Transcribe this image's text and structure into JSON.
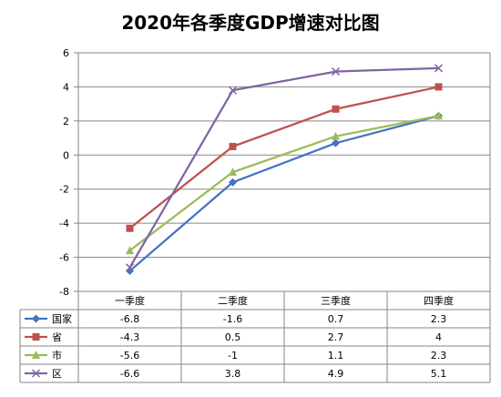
{
  "chart_data": {
    "type": "line",
    "title": "2020年各季度GDP增速对比图",
    "xlabel": "",
    "ylabel": "",
    "categories": [
      "一季度",
      "二季度",
      "三季度",
      "四季度"
    ],
    "ylim": [
      -8,
      6
    ],
    "ytick_step": 2,
    "grid": "horizontal",
    "legend": "data-table-left",
    "series": [
      {
        "name": "国家",
        "marker": "diamond",
        "color": "#4472C4",
        "values": [
          -6.8,
          -1.6,
          0.7,
          2.3
        ],
        "labels": [
          "-6.8",
          "-1.6",
          "0.7",
          "2.3"
        ]
      },
      {
        "name": "省",
        "marker": "square",
        "color": "#C0504D",
        "values": [
          -4.3,
          0.5,
          2.7,
          4
        ],
        "labels": [
          "-4.3",
          "0.5",
          "2.7",
          "4"
        ]
      },
      {
        "name": "市",
        "marker": "triangle",
        "color": "#9BBB59",
        "values": [
          -5.6,
          -1,
          1.1,
          2.3
        ],
        "labels": [
          "-5.6",
          "-1",
          "1.1",
          "2.3"
        ]
      },
      {
        "name": "区",
        "marker": "x",
        "color": "#8064A2",
        "values": [
          -6.6,
          3.8,
          4.9,
          5.1
        ],
        "labels": [
          "-6.6",
          "3.8",
          "4.9",
          "5.1"
        ]
      }
    ]
  }
}
